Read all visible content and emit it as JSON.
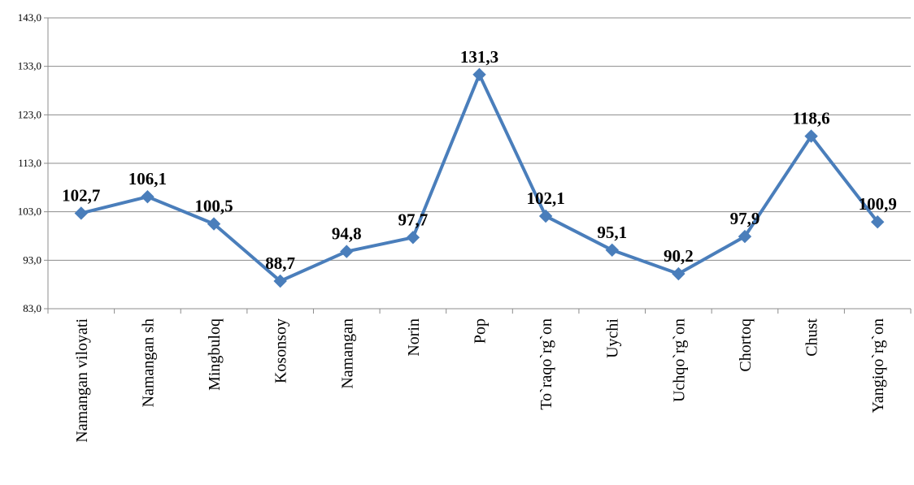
{
  "chart_data": {
    "type": "line",
    "categories": [
      "Namangan viloyati",
      "Namangan sh",
      "Mingbuloq",
      "Kosonsoy",
      "Namangan",
      "Norin",
      "Pop",
      "To`raqo`rg`on",
      "Uychi",
      "Uchqo`rg`on",
      "Chortoq",
      "Chust",
      "Yangiqo`rg`on"
    ],
    "series": [
      {
        "values": [
          102.7,
          106.1,
          100.5,
          88.7,
          94.8,
          97.7,
          131.3,
          102.1,
          95.1,
          90.2,
          97.9,
          118.6,
          100.9
        ],
        "labels": [
          "102,7",
          "106,1",
          "100,5",
          "88,7",
          "94,8",
          "97,7",
          "131,3",
          "102,1",
          "95,1",
          "90,2",
          "97,9",
          "118,6",
          "100,9"
        ],
        "color": "#4A7EBB",
        "marker": "diamond"
      }
    ],
    "yticks": [
      83,
      93,
      103,
      113,
      123,
      133,
      143
    ],
    "ytick_labels": [
      "83,0",
      "93,0",
      "103,0",
      "113,0",
      "123,0",
      "133,0",
      "143,0"
    ],
    "ylim": [
      83,
      143
    ],
    "grid": true,
    "legend": "none",
    "title": "",
    "xlabel": "",
    "ylabel": ""
  }
}
